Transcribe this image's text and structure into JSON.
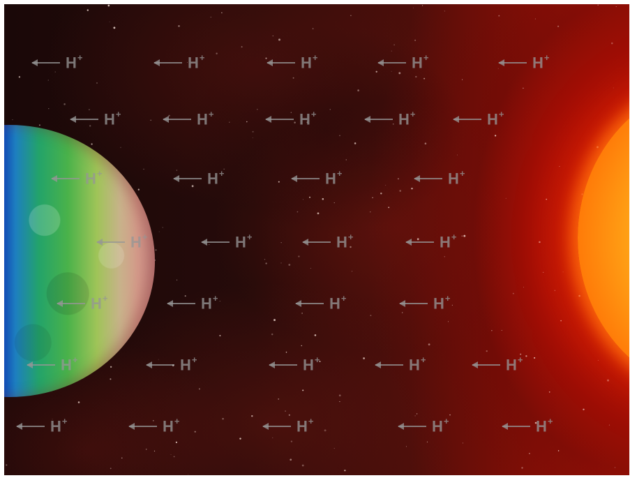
{
  "scene": {
    "ion_symbol": "H",
    "ion_charge": "+",
    "ion_count": 34,
    "arrow_direction": "left",
    "bodies": [
      "moon",
      "sun"
    ],
    "colors": {
      "space": "#160707",
      "sun": "#ff8a10",
      "label": "#969696"
    }
  }
}
